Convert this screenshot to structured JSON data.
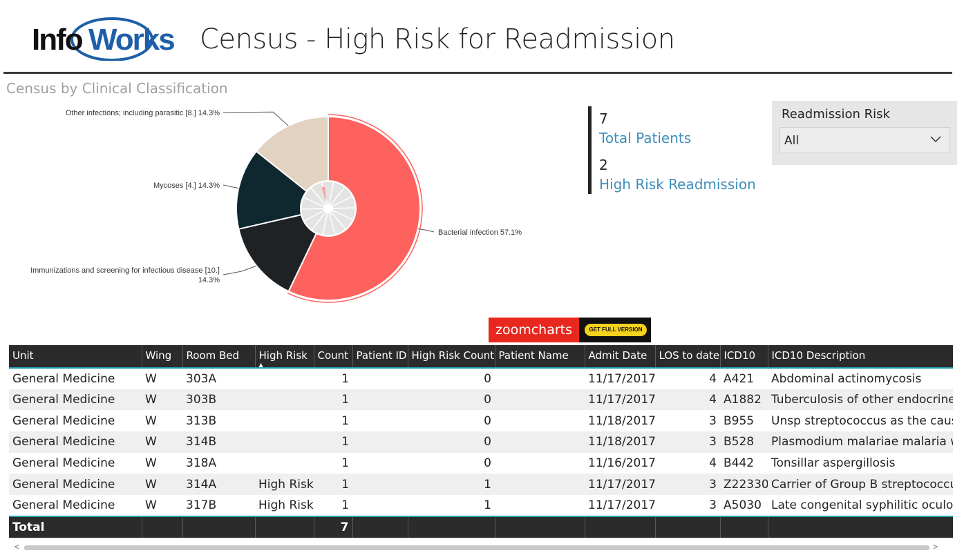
{
  "header": {
    "logo_text_1": "Info",
    "logo_text_2": "Works",
    "title": "Census - High Risk for Readmission"
  },
  "chart": {
    "title": "Census by Clinical Classification"
  },
  "chart_data": {
    "type": "pie",
    "title": "Census by Clinical Classification",
    "slices": [
      {
        "label": "Bacterial infection",
        "value": 57.1,
        "color": "#fd625e",
        "data_label": "Bacterial infection 57.1%"
      },
      {
        "label": "Immunizations and screening for infectious disease [10.]",
        "value": 14.3,
        "color": "#1f2225",
        "data_label_1": "Immunizations and screening for infectious disease [10.]",
        "data_label_2": "14.3%"
      },
      {
        "label": "Mycoses [4.]",
        "value": 14.3,
        "color": "#0f2830",
        "data_label": "Mycoses [4.] 14.3%"
      },
      {
        "label": "Other infections; including parasitic [8.]",
        "value": 14.3,
        "color": "#e1d2c2",
        "data_label": "Other infections; including parasitic [8.] 14.3%"
      }
    ]
  },
  "kpis": [
    {
      "value": "7",
      "label": "Total Patients"
    },
    {
      "value": "2",
      "label": "High Risk Readmission"
    }
  ],
  "slicer": {
    "title": "Readmission Risk",
    "selected": "All"
  },
  "zoomcharts": {
    "brand": "zoomcharts",
    "button": "GET FULL VERSION"
  },
  "table": {
    "columns": [
      "Unit",
      "Wing",
      "Room Bed",
      "High Risk",
      "Count",
      "Patient ID",
      "High Risk Count",
      "Patient Name",
      "Admit Date",
      "LOS to date",
      "ICD10",
      "ICD10 Description"
    ],
    "sort_arrow": "▲",
    "rows": [
      [
        "General Medicine",
        "W",
        "303A",
        "",
        "1",
        "",
        "0",
        "",
        "11/17/2017",
        "4",
        "A421",
        "Abdominal actinomycosis"
      ],
      [
        "General Medicine",
        "W",
        "303B",
        "",
        "1",
        "",
        "0",
        "",
        "11/17/2017",
        "4",
        "A1882",
        "Tuberculosis of other endocrine gl"
      ],
      [
        "General Medicine",
        "W",
        "313B",
        "",
        "1",
        "",
        "0",
        "",
        "11/18/2017",
        "3",
        "B955",
        "Unsp streptococcus as the cause c"
      ],
      [
        "General Medicine",
        "W",
        "314B",
        "",
        "1",
        "",
        "0",
        "",
        "11/18/2017",
        "3",
        "B528",
        "Plasmodium malariae malaria with"
      ],
      [
        "General Medicine",
        "W",
        "318A",
        "",
        "1",
        "",
        "0",
        "",
        "11/16/2017",
        "4",
        "B442",
        "Tonsillar aspergillosis"
      ],
      [
        "General Medicine",
        "W",
        "314A",
        "High Risk",
        "1",
        "",
        "1",
        "",
        "11/17/2017",
        "3",
        "Z22330",
        "Carrier of Group B streptococcus"
      ],
      [
        "General Medicine",
        "W",
        "317B",
        "High Risk",
        "1",
        "",
        "1",
        "",
        "11/17/2017",
        "3",
        "A5030",
        "Late congenital syphilitic oculopat"
      ]
    ],
    "total_label": "Total",
    "total_count": "7"
  },
  "scrollbar": {
    "left_arrow": "<",
    "right_arrow": ">"
  }
}
